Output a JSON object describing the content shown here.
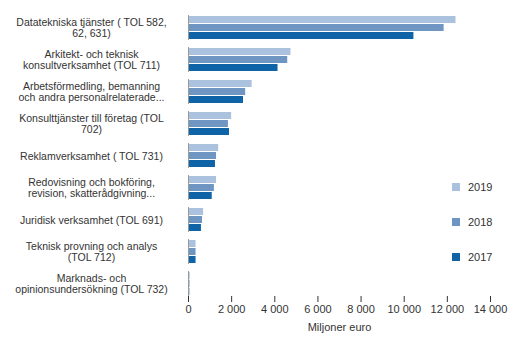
{
  "chart_data": {
    "type": "bar",
    "orientation": "horizontal",
    "categories": [
      "Datatekniska tjänster ( TOL 582,\n62, 631)",
      "Arkitekt- och teknisk\nkonsultverksamhet (TOL 711)",
      "Arbetsförmedling, bemanning\noch andra personalrelaterade...",
      "Konsulttjänster till företag (TOL\n702)",
      "Reklamverksamhet ( TOL 731)",
      "Redovisning och bokföring,\nrevision, skatterådgivning...",
      "Juridisk verksamhet (TOL 691)",
      "Teknisk provning och analys\n(TOL 712)",
      "Marknads- och\nopinionsundersökning (TOL 732)"
    ],
    "series": [
      {
        "name": "2019",
        "color": "#abc2de",
        "values": [
          12400,
          4750,
          2950,
          2000,
          1400,
          1300,
          700,
          350,
          80
        ]
      },
      {
        "name": "2018",
        "color": "#6f95c3",
        "values": [
          11850,
          4600,
          2650,
          1850,
          1300,
          1200,
          650,
          350,
          70
        ]
      },
      {
        "name": "2017",
        "color": "#0f63a7",
        "values": [
          10450,
          4150,
          2550,
          1900,
          1250,
          1100,
          600,
          350,
          60
        ]
      }
    ],
    "xlabel": "Miljoner euro",
    "xlim": [
      0,
      14000
    ],
    "xticks": [
      0,
      {
        "value": 2000,
        "label": "2 000"
      },
      {
        "value": 4000,
        "label": "4 000"
      },
      {
        "value": 6000,
        "label": "6 000"
      },
      {
        "value": 8000,
        "label": "8 000"
      },
      {
        "value": 10000,
        "label": "10 000"
      },
      {
        "value": 12000,
        "label": "12 000"
      },
      {
        "value": 14000,
        "label": "14 000"
      }
    ],
    "grid": false,
    "legend": "right"
  }
}
